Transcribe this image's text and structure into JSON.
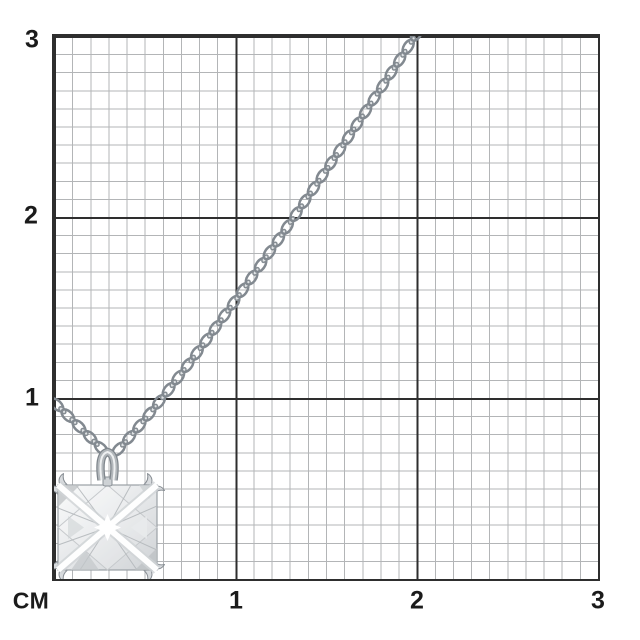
{
  "axes": {
    "unit": "СМ",
    "y_ticks": [
      "3",
      "2",
      "1"
    ],
    "x_ticks": [
      "1",
      "2",
      "3"
    ]
  },
  "subject": {
    "description": "Silver cable-chain necklace with a square princess-cut stone pendant in a four-prong setting, photographed on a centimeter measurement grid"
  },
  "colors": {
    "grid_minor": "#b3b5b7",
    "grid_major": "#2e2e2e",
    "label_text": "#1b1b1b",
    "metal": "#8a9096",
    "stone_light": "#f7f8f9",
    "stone_mid": "#d9dcde"
  }
}
